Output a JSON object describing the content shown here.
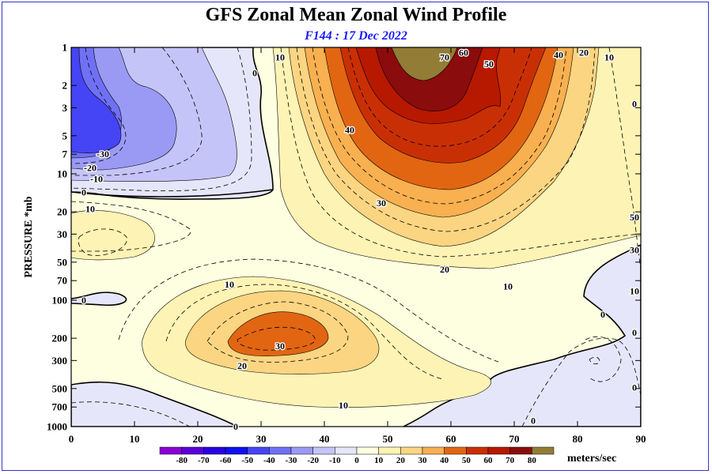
{
  "chart_data": {
    "type": "contour",
    "title": "GFS Zonal Mean Zonal Wind Profile",
    "subtitle": "F144 : 17 Dec 2022",
    "xlabel": "",
    "ylabel": "PRESSURE *mb",
    "xlim": [
      0,
      90
    ],
    "ylim": [
      1000,
      1
    ],
    "y_scale": "log",
    "x_ticks": [
      0,
      10,
      20,
      30,
      40,
      50,
      60,
      70,
      80,
      90
    ],
    "y_ticks": [
      1,
      2,
      3,
      5,
      7,
      10,
      20,
      30,
      50,
      70,
      100,
      200,
      300,
      500,
      700,
      1000
    ],
    "colorbar": {
      "levels": [
        -80,
        -70,
        -60,
        -50,
        -40,
        -30,
        -20,
        -10,
        0,
        10,
        20,
        30,
        40,
        50,
        60,
        70,
        80
      ],
      "colors": [
        "#8a00d4",
        "#5a00d8",
        "#2a00e0",
        "#1010f0",
        "#4545f5",
        "#7070f5",
        "#9a9af5",
        "#c4c4f8",
        "#e6e6fa",
        "#fefee0",
        "#fdf3b4",
        "#fbd582",
        "#f8b050",
        "#e26512",
        "#c92f05",
        "#b71800",
        "#8a0c0c",
        "#937c35"
      ],
      "unit_label": "meters/sec"
    },
    "contour_labels": [
      {
        "lat": 5,
        "p": 7,
        "text": "-30"
      },
      {
        "lat": 3,
        "p": 9,
        "text": "-20"
      },
      {
        "lat": 4,
        "p": 11,
        "text": "-10"
      },
      {
        "lat": 2,
        "p": 14,
        "text": "0"
      },
      {
        "lat": 3,
        "p": 19,
        "text": "10"
      },
      {
        "lat": 2,
        "p": 100,
        "text": "0"
      },
      {
        "lat": 29,
        "p": 1.6,
        "text": "0"
      },
      {
        "lat": 33,
        "p": 1.2,
        "text": "10"
      },
      {
        "lat": 44,
        "p": 4.5,
        "text": "40"
      },
      {
        "lat": 49,
        "p": 17,
        "text": "30"
      },
      {
        "lat": 59,
        "p": 57,
        "text": "20"
      },
      {
        "lat": 69,
        "p": 78,
        "text": "10"
      },
      {
        "lat": 25,
        "p": 75,
        "text": "10"
      },
      {
        "lat": 27,
        "p": 330,
        "text": "20"
      },
      {
        "lat": 33,
        "p": 230,
        "text": "30"
      },
      {
        "lat": 43,
        "p": 680,
        "text": "10"
      },
      {
        "lat": 26,
        "p": 1000,
        "text": "0"
      },
      {
        "lat": 59,
        "p": 1.2,
        "text": "70"
      },
      {
        "lat": 62,
        "p": 1.1,
        "text": "60"
      },
      {
        "lat": 66,
        "p": 1.35,
        "text": "50"
      },
      {
        "lat": 77,
        "p": 1.15,
        "text": "40"
      },
      {
        "lat": 81,
        "p": 1.1,
        "text": "20"
      },
      {
        "lat": 85,
        "p": 1.2,
        "text": "10"
      },
      {
        "lat": 89,
        "p": 2.8,
        "text": "0"
      },
      {
        "lat": 89,
        "p": 22,
        "text": "50"
      },
      {
        "lat": 89,
        "p": 40,
        "text": "30"
      },
      {
        "lat": 89,
        "p": 85,
        "text": "10"
      },
      {
        "lat": 84,
        "p": 130,
        "text": "0"
      },
      {
        "lat": 89,
        "p": 180,
        "text": "0"
      },
      {
        "lat": 89,
        "p": 490,
        "text": "0"
      },
      {
        "lat": 73,
        "p": 900,
        "text": "0"
      }
    ]
  }
}
